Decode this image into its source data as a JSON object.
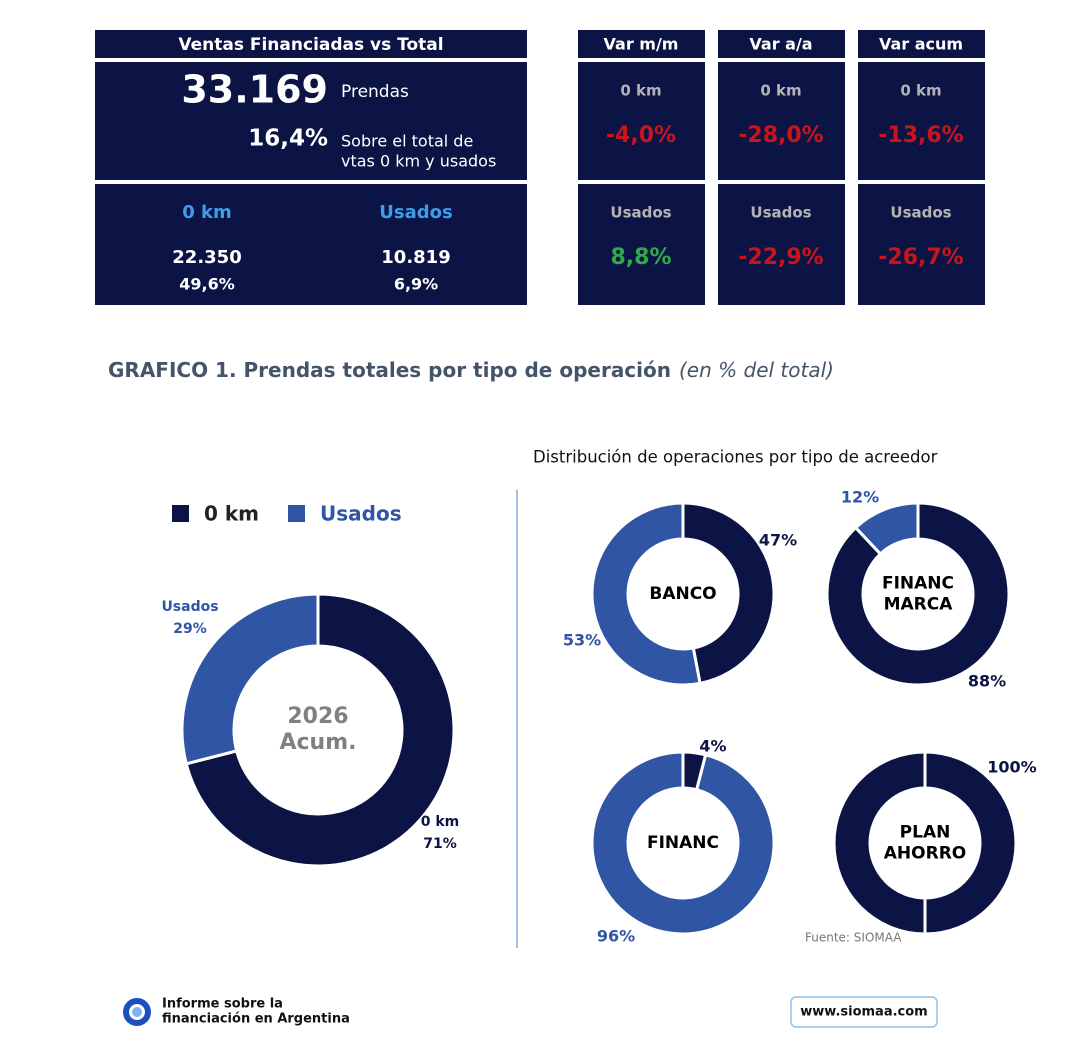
{
  "summary": {
    "title": "Ventas Financiadas vs Total",
    "total": "33.169",
    "total_unit": "Prendas",
    "share": "16,4%",
    "share_note_lines": [
      "Sobre el total de",
      "vtas 0 km y usados"
    ],
    "columns": [
      {
        "label": "0 km",
        "count": "22.350",
        "share": "49,6%"
      },
      {
        "label": "Usados",
        "count": "10.819",
        "share": "6,9%"
      }
    ]
  },
  "var_boxes": [
    {
      "title": "Var m/m",
      "rows": [
        {
          "label": "0 km",
          "value": "-4,0%"
        },
        {
          "label": "Usados",
          "value": "8,8%"
        }
      ]
    },
    {
      "title": "Var a/a",
      "rows": [
        {
          "label": "0 km",
          "value": "-28,0%"
        },
        {
          "label": "Usados",
          "value": "-22,9%"
        }
      ]
    },
    {
      "title": "Var acum",
      "rows": [
        {
          "label": "0 km",
          "value": "-13,6%"
        },
        {
          "label": "Usados",
          "value": "-26,7%"
        }
      ]
    }
  ],
  "section_title": {
    "main": "GRAFICO 1. Prendas totales por tipo de operación",
    "note": "(en % del total)"
  },
  "distribution_title": "Distribución de operaciones por tipo de acreedor",
  "chart_data": [
    {
      "type": "pie",
      "center_lines": [
        "2026",
        "Acum."
      ],
      "categories": [
        "0 km",
        "Usados"
      ],
      "values": [
        71,
        29
      ],
      "value_labels": [
        "71%",
        "29%"
      ],
      "colors": [
        "#0c1445",
        "#2f55a4"
      ],
      "legend": "top"
    },
    {
      "type": "pie",
      "title_lines": [
        "BANCO"
      ],
      "values": [
        47,
        53
      ],
      "value_labels": [
        "47%",
        "53%"
      ],
      "colors": [
        "#0c1445",
        "#2f55a4"
      ]
    },
    {
      "type": "pie",
      "title_lines": [
        "FINANC",
        "MARCA"
      ],
      "values": [
        88,
        12
      ],
      "value_labels": [
        "88%",
        "12%"
      ],
      "colors": [
        "#0c1445",
        "#2f55a4"
      ]
    },
    {
      "type": "pie",
      "title_lines": [
        "FINANC"
      ],
      "values": [
        4,
        96
      ],
      "value_labels": [
        "4%",
        "96%"
      ],
      "colors": [
        "#0c1445",
        "#2f55a4"
      ]
    },
    {
      "type": "pie",
      "title_lines": [
        "PLAN",
        "AHORRO"
      ],
      "values": [
        100
      ],
      "value_labels": [
        "100%"
      ],
      "colors": [
        "#0c1445"
      ]
    }
  ],
  "source": "Fuente: SIOMAA",
  "footer": {
    "brand_lines": [
      "Informe sobre la",
      "financiación en Argentina"
    ],
    "url": "www.siomaa.com"
  }
}
